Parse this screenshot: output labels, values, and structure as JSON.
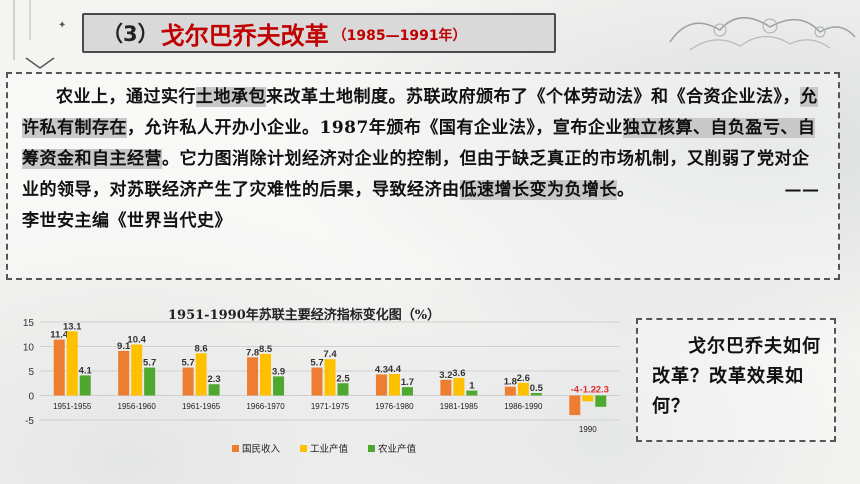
{
  "title": {
    "number": "（3）",
    "main": "戈尔巴乔夫改革",
    "years": "（1985—1991年）"
  },
  "passage": {
    "s1": "农业上，通过实行",
    "h1": "土地承包",
    "s2": "来改革土地制度。苏联政府颁布了《个体劳动法》和《合资企业法》，",
    "h2": "允许私有制存在",
    "s3": "，允许私人开办小企业。1987年颁布《国有企业法》，宣布企业",
    "h3": "独立核算、自负盈亏、自筹资金和自主经营",
    "s4": "。它力图消除计划经济对企业的控制，但由于缺乏真正的市场机制，又削弱了党对企业的领导，对苏联经济产生了灾难性的后果，导致经济由",
    "h4": "低速增长变为负增长",
    "s5": "。",
    "source": "——李世安主编《世界当代史》"
  },
  "question": "戈尔巴乔夫如何改革？改革效果如何？",
  "colors": {
    "national_income": "#ed7d31",
    "industrial": "#ffc000",
    "agricultural": "#4ea72e",
    "title_red": "#c00000"
  },
  "chart_data": {
    "type": "bar",
    "title": "1951-1990年苏联主要经济指标变化图（%）",
    "categories": [
      "1951-1955",
      "1956-1960",
      "1961-1965",
      "1966-1970",
      "1971-1975",
      "1976-1980",
      "1981-1985",
      "1986-1990",
      "1990"
    ],
    "series": [
      {
        "name": "国民收入",
        "values": [
          11.4,
          9.1,
          5.7,
          7.8,
          5.7,
          4.3,
          3.2,
          1.8,
          -4
        ]
      },
      {
        "name": "工业产值",
        "values": [
          13.1,
          10.4,
          8.6,
          8.5,
          7.4,
          4.4,
          3.6,
          2.6,
          -1.2
        ]
      },
      {
        "name": "农业产值",
        "values": [
          4.1,
          5.7,
          2.3,
          3.9,
          2.5,
          1.7,
          1,
          0.5,
          -2.3
        ]
      }
    ],
    "value_labels": [
      [
        "11.4",
        "9.1",
        "5.7",
        "7.8",
        "5.7",
        "4.3",
        "3.2",
        "1.8",
        "-4"
      ],
      [
        "13.1",
        "10.4",
        "8.6",
        "8.5",
        "7.4",
        "4.4",
        "3.6",
        "2.6",
        "-1.2"
      ],
      [
        "4.1",
        "5.7",
        "2.3",
        "3.9",
        "2.5",
        "1.7",
        "1",
        "0.5",
        "-2.3"
      ]
    ],
    "yticks": [
      15,
      10,
      5,
      0,
      -5
    ],
    "ylim": [
      -5,
      15
    ],
    "grid": true,
    "legend": "bottom"
  }
}
